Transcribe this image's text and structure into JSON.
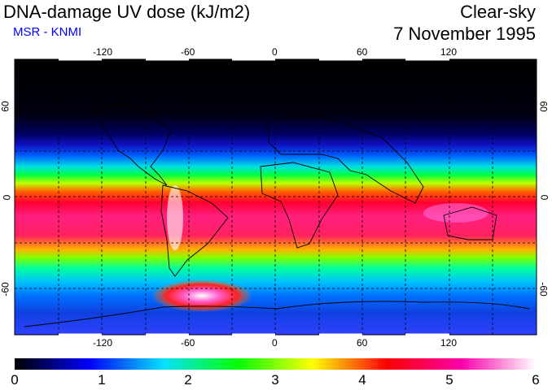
{
  "header": {
    "title": "DNA-damage UV dose (kJ/m2)",
    "subtitle": "MSR - KNMI",
    "condition": "Clear-sky",
    "date": "7 November 1995"
  },
  "map": {
    "projection": "equirectangular",
    "grid_spacing_deg": 30,
    "lon_ticks": [
      "-120",
      "-60",
      "0",
      "60",
      "120"
    ],
    "lat_ticks": [
      "60",
      "0",
      "-60"
    ]
  },
  "colorbar": {
    "labels": [
      "0",
      "1",
      "2",
      "3",
      "4",
      "5",
      "6"
    ],
    "min": 0,
    "max": 6,
    "colors": [
      "#000000",
      "#0000ff",
      "#00e0ff",
      "#00ff00",
      "#ffff00",
      "#ff0000",
      "#ff00aa",
      "#ffffff"
    ]
  }
}
